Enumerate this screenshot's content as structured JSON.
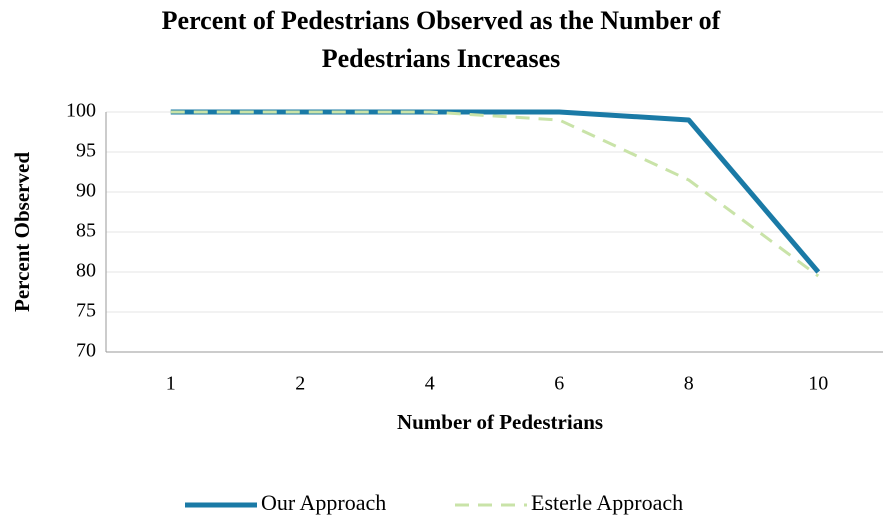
{
  "chart_data": {
    "type": "line",
    "title": "Percent of Pedestrians Observed as the Number of Pedestrians Increases",
    "x_label": "Number of Pedestrians",
    "y_label": "Percent Observed",
    "categories": [
      "1",
      "2",
      "4",
      "6",
      "8",
      "10"
    ],
    "series": [
      {
        "name": "Our Approach",
        "color": "#1a7aa6",
        "dash": false,
        "values": [
          100,
          100,
          100,
          100,
          99,
          80
        ]
      },
      {
        "name": "Esterle Approach",
        "color": "#c9e3a8",
        "dash": true,
        "values": [
          100,
          100,
          100,
          99,
          91.5,
          79.5
        ]
      }
    ],
    "ylim": [
      70,
      100
    ],
    "yticks": [
      70,
      75,
      80,
      85,
      90,
      95,
      100
    ],
    "grid": true,
    "legend": "bottom"
  }
}
